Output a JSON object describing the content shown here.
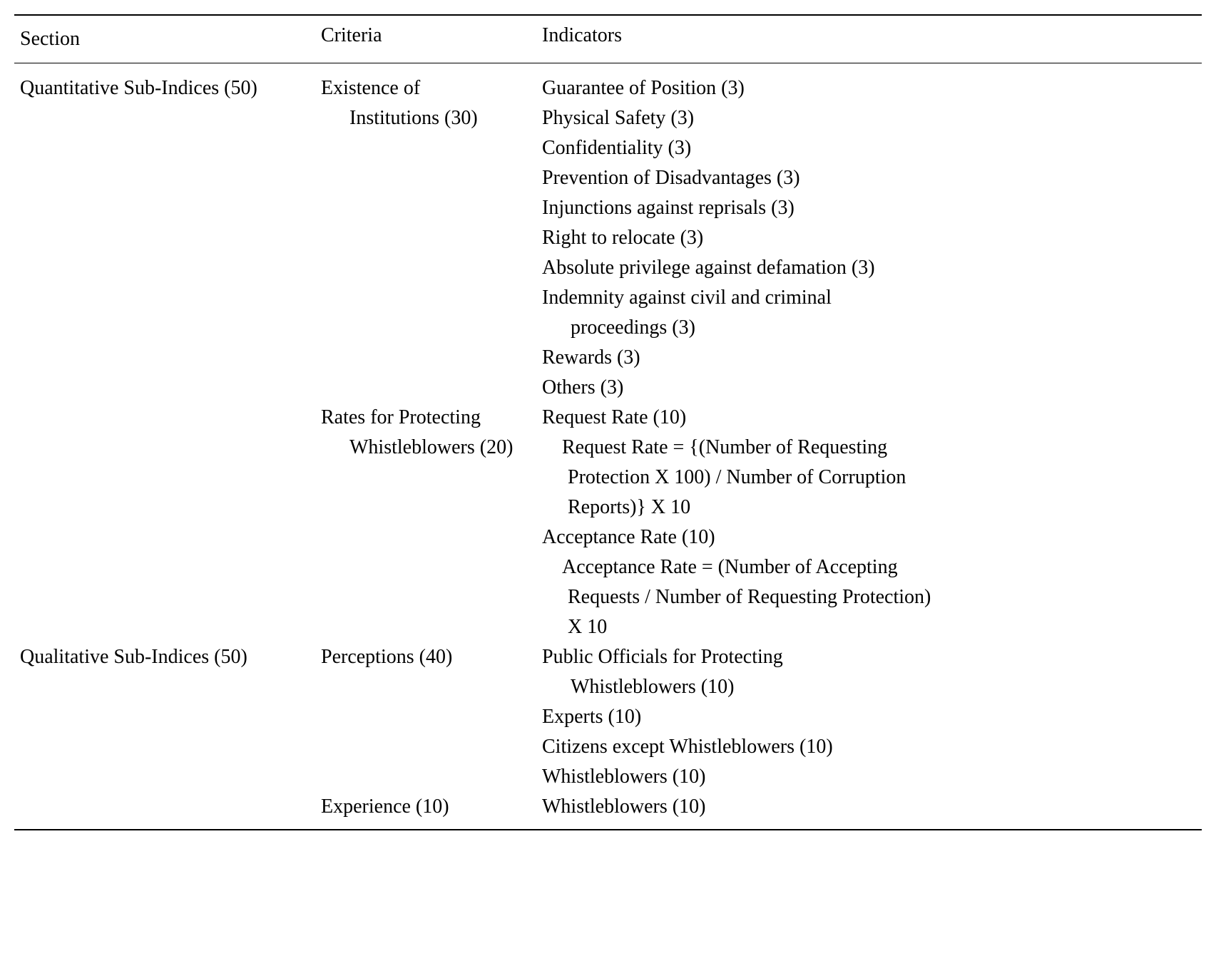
{
  "headers": {
    "section": "Section",
    "criteria": "Criteria",
    "indicators": "Indicators"
  },
  "sections": {
    "quantitative": {
      "label": "Quantitative  Sub-Indices (50)",
      "criteria": {
        "existence": {
          "line1": "Existence of",
          "line2": "Institutions (30)",
          "indicators": {
            "i1": "Guarantee of Position (3)",
            "i2": "Physical Safety (3)",
            "i3": "Confidentiality (3)",
            "i4": "Prevention of Disadvantages (3)",
            "i5": "Injunctions against reprisals (3)",
            "i6": "Right to relocate (3)",
            "i7": "Absolute privilege against defamation (3)",
            "i8a": "Indemnity against civil and criminal",
            "i8b": "proceedings (3)",
            "i9": "Rewards (3)",
            "i10": "Others (3)"
          }
        },
        "rates": {
          "line1": "Rates for Protecting",
          "line2": "Whistleblowers (20)",
          "indicators": {
            "i1": "Request Rate (10)",
            "i2a": "Request Rate = {(Number of Requesting",
            "i2b": "Protection X 100) / Number of Corruption",
            "i2c": "Reports)} X 10",
            "i3": "Acceptance Rate (10)",
            "i4a": "Acceptance Rate = (Number of Accepting",
            "i4b": "Requests / Number of Requesting Protection)",
            "i4c": "X 10"
          }
        }
      }
    },
    "qualitative": {
      "label": "Qualitative Sub-Indices (50)",
      "criteria": {
        "perceptions": {
          "line1": "Perceptions (40)",
          "indicators": {
            "i1a": "Public Officials for Protecting",
            "i1b": "Whistleblowers (10)",
            "i2": "Experts (10)",
            "i3": "Citizens except Whistleblowers (10)",
            "i4": "Whistleblowers (10)"
          }
        },
        "experience": {
          "line1": "Experience (10)",
          "indicators": {
            "i1": "Whistleblowers (10)"
          }
        }
      }
    }
  }
}
